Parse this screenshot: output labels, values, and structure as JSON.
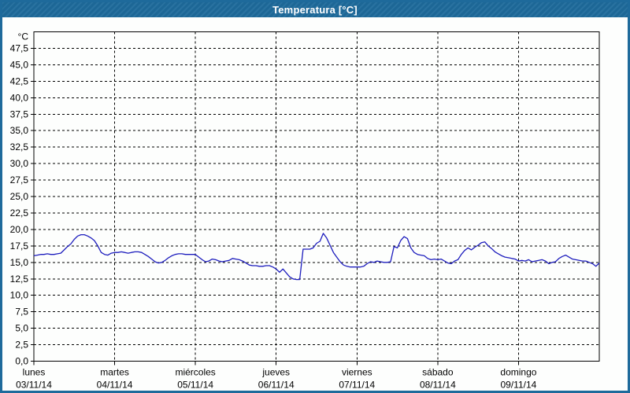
{
  "window": {
    "title": "Temperatura [°C]",
    "title_bar_bg": "#1e6a9b",
    "border_color": "#1e6a9b"
  },
  "chart_data": {
    "type": "line",
    "title": "Temperatura [°C]",
    "y_unit_label": "°C",
    "ylim": [
      0,
      50
    ],
    "grid": "dashed",
    "legend": "none",
    "grid_color": "#000000",
    "line_color": "#1d1dbd",
    "y_ticks": [
      {
        "value": 0.0,
        "label": "0,0"
      },
      {
        "value": 2.5,
        "label": "2,5"
      },
      {
        "value": 5.0,
        "label": "5,0"
      },
      {
        "value": 7.5,
        "label": "7,5"
      },
      {
        "value": 10.0,
        "label": "10,0"
      },
      {
        "value": 12.5,
        "label": "12,5"
      },
      {
        "value": 15.0,
        "label": "15,0"
      },
      {
        "value": 17.5,
        "label": "17,5"
      },
      {
        "value": 20.0,
        "label": "20,0"
      },
      {
        "value": 22.5,
        "label": "22,5"
      },
      {
        "value": 25.0,
        "label": "25,0"
      },
      {
        "value": 27.5,
        "label": "27,5"
      },
      {
        "value": 30.0,
        "label": "30,0"
      },
      {
        "value": 32.5,
        "label": "32,5"
      },
      {
        "value": 35.0,
        "label": "35,0"
      },
      {
        "value": 37.5,
        "label": "37,5"
      },
      {
        "value": 40.0,
        "label": "40,0"
      },
      {
        "value": 42.5,
        "label": "42,5"
      },
      {
        "value": 45.0,
        "label": "45,0"
      },
      {
        "value": 47.5,
        "label": "47,5"
      }
    ],
    "x_days": [
      {
        "name": "lunes",
        "date": "03/11/14"
      },
      {
        "name": "martes",
        "date": "04/11/14"
      },
      {
        "name": "miércoles",
        "date": "05/11/14"
      },
      {
        "name": "jueves",
        "date": "06/11/14"
      },
      {
        "name": "viernes",
        "date": "07/11/14"
      },
      {
        "name": "sábado",
        "date": "08/11/14"
      },
      {
        "name": "domingo",
        "date": "09/11/14"
      }
    ],
    "samples_per_day": 24,
    "series": [
      {
        "name": "Temperatura",
        "unit": "°C",
        "values": [
          16.0,
          16.1,
          16.2,
          16.2,
          16.3,
          16.2,
          16.2,
          16.3,
          16.4,
          16.9,
          17.4,
          17.8,
          18.5,
          19.0,
          19.2,
          19.2,
          19.0,
          18.7,
          18.3,
          17.5,
          16.5,
          16.2,
          16.1,
          16.4,
          16.5,
          16.5,
          16.6,
          16.5,
          16.4,
          16.5,
          16.6,
          16.6,
          16.5,
          16.2,
          15.9,
          15.5,
          15.1,
          14.9,
          15.0,
          15.3,
          15.7,
          16.0,
          16.2,
          16.3,
          16.3,
          16.2,
          16.2,
          16.2,
          16.2,
          15.8,
          15.4,
          15.1,
          15.2,
          15.5,
          15.4,
          15.2,
          15.1,
          15.2,
          15.3,
          15.6,
          15.5,
          15.4,
          15.2,
          14.9,
          14.6,
          14.5,
          14.5,
          14.4,
          14.4,
          14.5,
          14.5,
          14.3,
          14.0,
          13.5,
          14.0,
          13.4,
          12.8,
          12.5,
          12.4,
          12.4,
          17.0,
          17.0,
          17.0,
          17.2,
          17.9,
          18.2,
          19.4,
          18.7,
          17.6,
          16.5,
          15.8,
          15.1,
          14.6,
          14.4,
          14.3,
          14.3,
          14.3,
          14.3,
          14.4,
          14.8,
          15.1,
          15.0,
          15.2,
          15.1,
          15.0,
          15.0,
          15.1,
          17.4,
          17.2,
          18.3,
          18.9,
          18.6,
          17.2,
          16.5,
          16.2,
          16.1,
          16.0,
          15.6,
          15.4,
          15.5,
          15.4,
          15.5,
          15.2,
          14.9,
          14.8,
          15.2,
          15.4,
          16.2,
          16.8,
          17.2,
          16.9,
          17.3,
          17.6,
          18.0,
          18.1,
          17.5,
          17.1,
          16.6,
          16.3,
          16.0,
          15.8,
          15.7,
          15.6,
          15.5,
          15.2,
          15.3,
          15.2,
          15.4,
          15.1,
          15.2,
          15.3,
          15.4,
          15.2,
          14.8,
          15.0,
          15.1,
          15.6,
          15.9,
          16.1,
          15.8,
          15.5,
          15.4,
          15.3,
          15.2,
          15.2,
          15.0,
          14.8,
          14.4,
          14.9
        ]
      }
    ]
  }
}
